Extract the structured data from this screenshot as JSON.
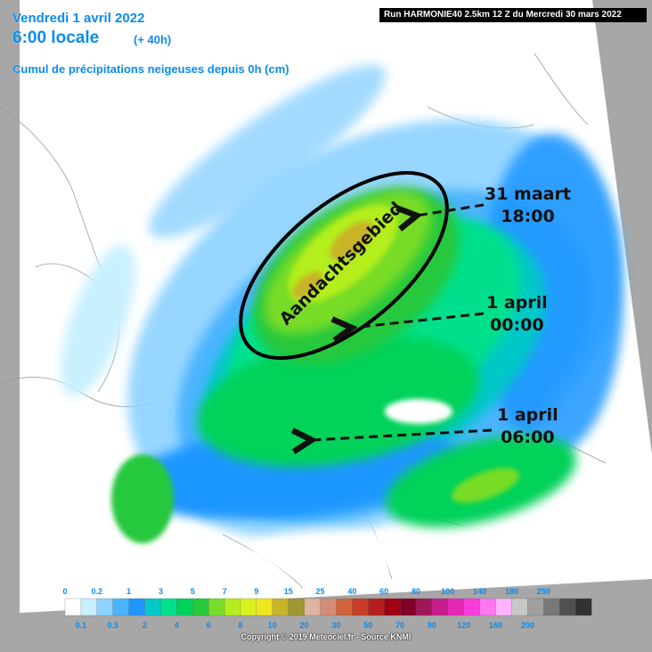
{
  "header": {
    "date": "Vendredi 1 avril 2022",
    "time": "6:00 locale",
    "offset": "(+ 40h)",
    "subtitle": "Cumul de précipitations neigeuses depuis 0h (cm)",
    "run": "Run HARMONIE40 2.5km 12 Z du Mercredi 30 mars 2022"
  },
  "annotations": {
    "area_label": "Aandachtsgebied",
    "arrow1": {
      "line1": "31 maart",
      "line2": "18:00"
    },
    "arrow2": {
      "line1": "1 april",
      "line2": "00:00"
    },
    "arrow3": {
      "line1": "1 april",
      "line2": "06:00"
    }
  },
  "legend": {
    "top_labels": [
      "0",
      "0.2",
      "1",
      "3",
      "5",
      "7",
      "9",
      "15",
      "25",
      "40",
      "60",
      "80",
      "100",
      "140",
      "180",
      "250"
    ],
    "bottom_labels": [
      "0.1",
      "0.5",
      "2",
      "4",
      "6",
      "8",
      "10",
      "20",
      "30",
      "50",
      "70",
      "90",
      "120",
      "160",
      "200"
    ],
    "colors": [
      "#ffffff",
      "#c8f0ff",
      "#8cd2ff",
      "#4bb4ff",
      "#1e96ff",
      "#00c8c8",
      "#00e08c",
      "#00d25a",
      "#28c83c",
      "#78dc28",
      "#b4ee1e",
      "#dcf01e",
      "#f0e61e",
      "#c8b428",
      "#a09632",
      "#dcb4a0",
      "#d28c78",
      "#d2643c",
      "#c83c28",
      "#b41e1e",
      "#a00014",
      "#820028",
      "#a0145a",
      "#c81e8c",
      "#e628b4",
      "#fa3cdc",
      "#ff78f0",
      "#ffb4ff",
      "#c8c8c8",
      "#a0a0a0",
      "#787878",
      "#505050",
      "#323232"
    ],
    "copyright": "Copyright © 2019 Meteociel.fr - Source KNMI"
  },
  "colors": {
    "title_blue": "#0a8cf0",
    "land": "#ffffff",
    "outside": "#a7a7a7"
  }
}
